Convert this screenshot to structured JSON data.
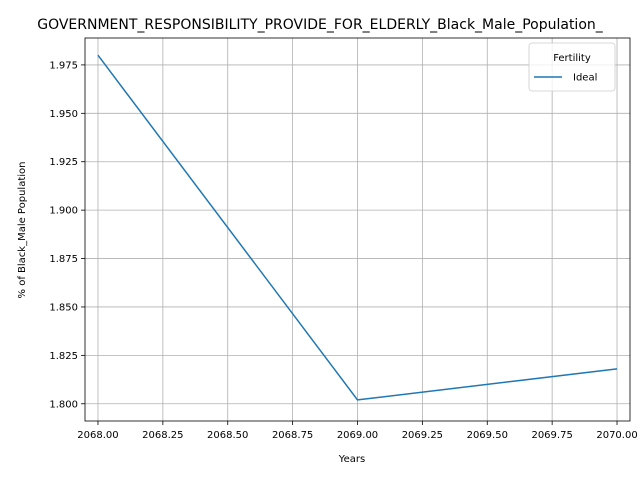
{
  "chart_data": {
    "type": "line",
    "title": "GOVERNMENT_RESPONSIBILITY_PROVIDE_FOR_ELDERLY_Black_Male_Population_",
    "xlabel": "Years",
    "ylabel": "% of Black_Male Population",
    "x": [
      2068,
      2069,
      2070
    ],
    "series": [
      {
        "name": "Ideal",
        "values": [
          1.98,
          1.802,
          1.818
        ],
        "color": "#1f77b4"
      }
    ],
    "xlim": [
      2067.95,
      2070.05
    ],
    "ylim": [
      1.7911,
      1.9889
    ],
    "xticks": [
      2068.0,
      2068.25,
      2068.5,
      2068.75,
      2069.0,
      2069.25,
      2069.5,
      2069.75,
      2070.0
    ],
    "xtick_labels": [
      "2068.00",
      "2068.25",
      "2068.50",
      "2068.75",
      "2069.00",
      "2069.25",
      "2069.50",
      "2069.75",
      "2070.00"
    ],
    "yticks": [
      1.8,
      1.825,
      1.85,
      1.875,
      1.9,
      1.925,
      1.95,
      1.975
    ],
    "ytick_labels": [
      "1.800",
      "1.825",
      "1.850",
      "1.875",
      "1.900",
      "1.925",
      "1.950",
      "1.975"
    ],
    "grid": true,
    "legend": {
      "title": "Fertility",
      "placement": "top-right"
    }
  }
}
